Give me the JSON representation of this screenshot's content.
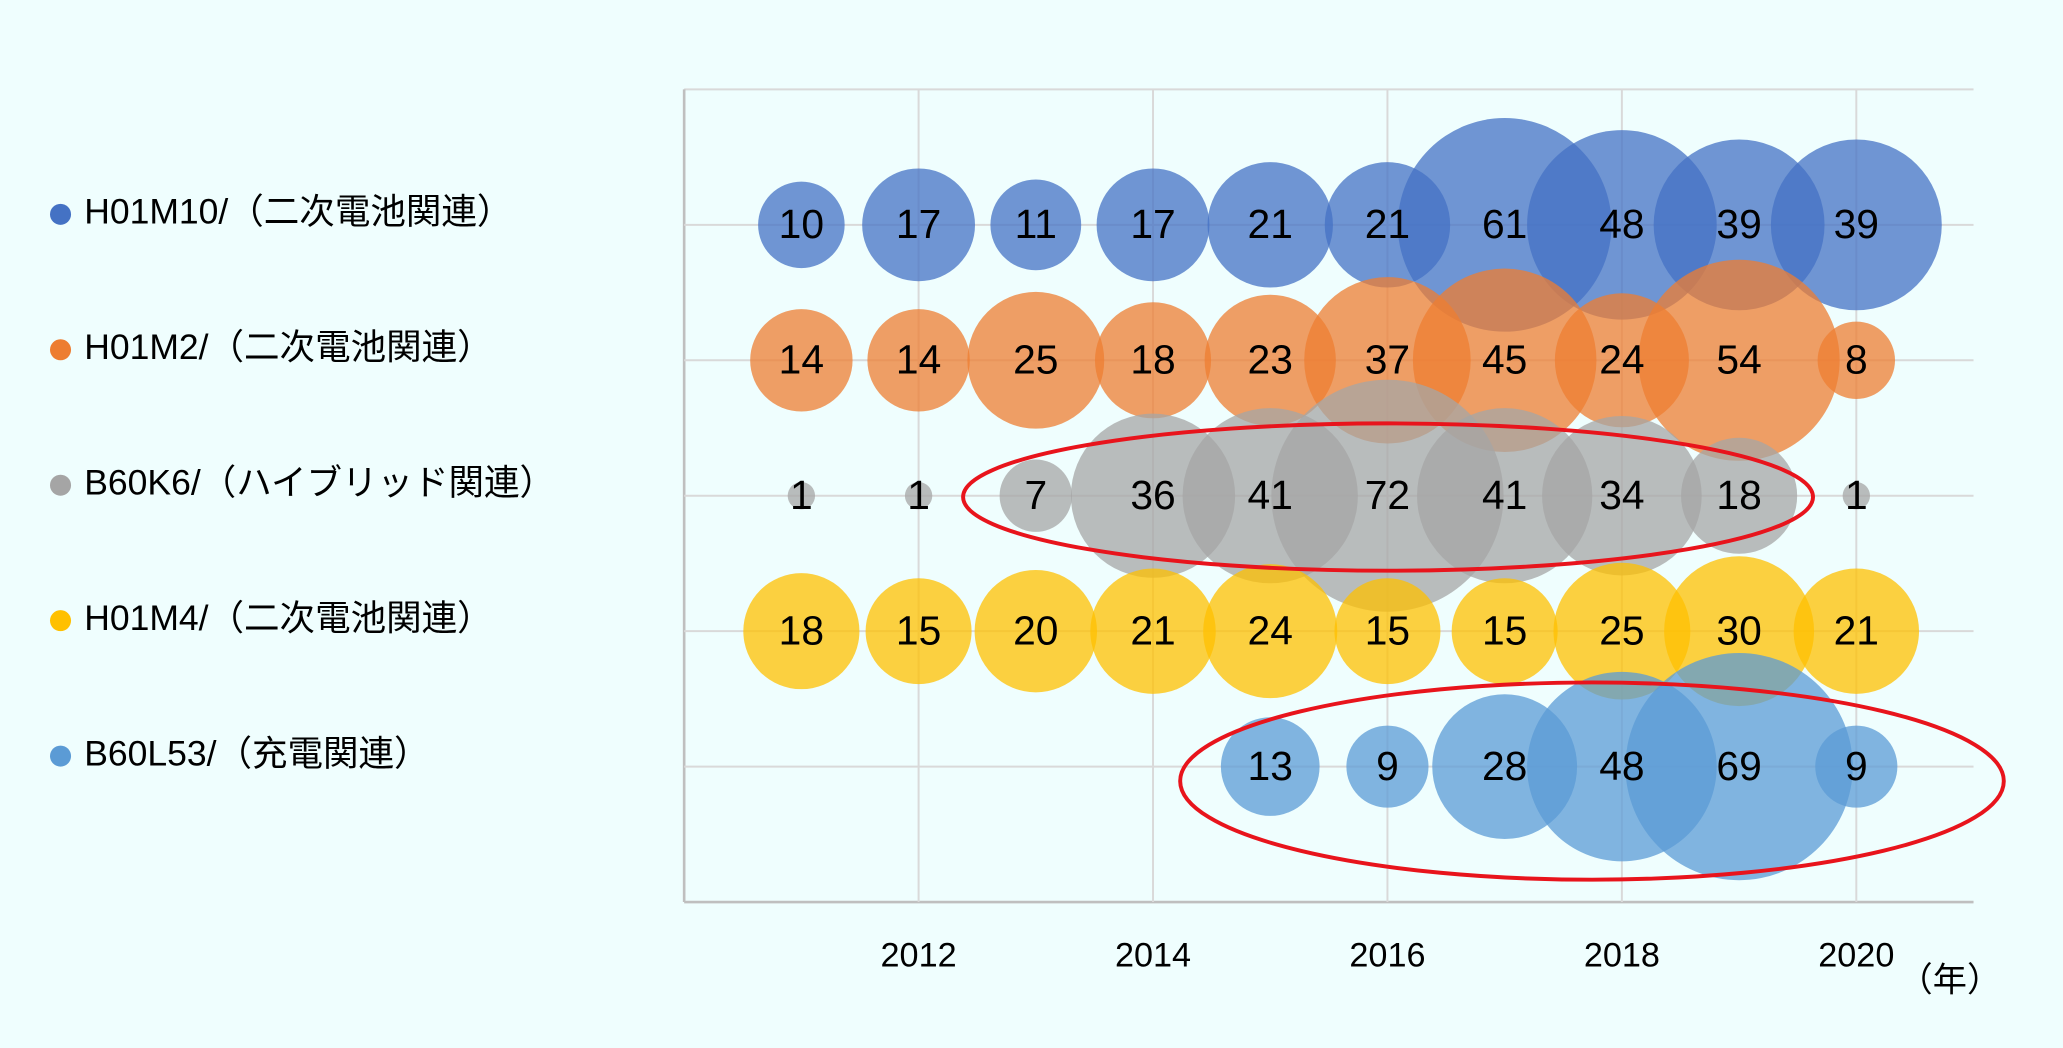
{
  "chart_data": {
    "type": "bubble",
    "x": [
      2011,
      2012,
      2013,
      2014,
      2015,
      2016,
      2017,
      2018,
      2019,
      2020
    ],
    "xlim": [
      2010,
      2021
    ],
    "xticks": [
      2012,
      2014,
      2016,
      2018,
      2020
    ],
    "x_unit": "（年）",
    "grid": true,
    "series": [
      {
        "name": "H01M10/（二次電池関連）",
        "color": "#4472c4",
        "values": [
          10,
          17,
          11,
          17,
          21,
          21,
          61,
          48,
          39,
          39
        ]
      },
      {
        "name": "H01M2/（二次電池関連）",
        "color": "#ed7d31",
        "values": [
          14,
          14,
          25,
          18,
          23,
          37,
          45,
          24,
          54,
          8
        ]
      },
      {
        "name": "B60K6/（ハイブリッド関連）",
        "color": "#a5a5a5",
        "values": [
          1,
          1,
          7,
          36,
          41,
          72,
          41,
          34,
          18,
          1
        ]
      },
      {
        "name": "H01M4/（二次電池関連）",
        "color": "#ffc000",
        "values": [
          18,
          15,
          20,
          21,
          24,
          15,
          15,
          25,
          30,
          21
        ]
      },
      {
        "name": "B60L53/（充電関連）",
        "color": "#5b9bd5",
        "values": [
          null,
          null,
          null,
          null,
          13,
          9,
          28,
          48,
          69,
          9
        ]
      }
    ]
  }
}
